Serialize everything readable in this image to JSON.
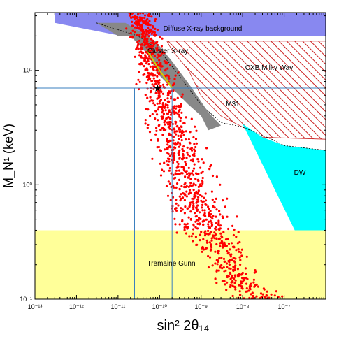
{
  "chart_data": {
    "type": "scatter",
    "title": "",
    "xlabel": "sin² 2θ₁₄",
    "ylabel": "M_N¹ (keV)",
    "xscale": "log",
    "yscale": "log",
    "xlim": [
      1e-13,
      1e-06
    ],
    "ylim": [
      0.1,
      32
    ],
    "x_tick_labels": [
      "10⁻¹³",
      "10⁻¹²",
      "10⁻¹¹",
      "10⁻¹⁰",
      "10⁻⁹",
      "10⁻⁸",
      "10⁻⁷"
    ],
    "y_tick_labels": [
      "10⁻¹",
      "10⁰",
      "10¹"
    ],
    "colors": {
      "points": "#ff0000",
      "diffuse": "#8888f0",
      "cxb": "#cc2222",
      "m31": "#888888",
      "dw": "#00ffff",
      "tremaine": "#ffff99",
      "crosshair": "#3a7fbf",
      "cluster_line": "#d4d400"
    },
    "regions": [
      {
        "label": "Diffuse X-ray background"
      },
      {
        "label": "CXB Milky Way"
      },
      {
        "label": "M31"
      },
      {
        "label": "DW"
      },
      {
        "label": "Tremaine Gunn"
      },
      {
        "label": "Cluster X-ray"
      }
    ],
    "benchmark": {
      "x": 9e-11,
      "y": 7
    },
    "crosshair": {
      "y": 7,
      "x_lines": [
        2.5e-11,
        2e-10
      ]
    },
    "boundaries": {
      "diffuse": [
        [
          3e-13,
          32
        ],
        [
          1e-06,
          32
        ],
        [
          1e-06,
          20
        ],
        [
          1.2e-11,
          20
        ],
        [
          3e-13,
          26
        ]
      ],
      "cxb": [
        [
          1.5e-10,
          18
        ],
        [
          1e-06,
          18
        ],
        [
          1e-06,
          2.5
        ],
        [
          3e-08,
          2.6
        ],
        [
          3e-09,
          4
        ],
        [
          1e-09,
          6
        ],
        [
          5e-10,
          10
        ],
        [
          2e-10,
          15
        ]
      ],
      "m31": [
        [
          3e-12,
          26
        ],
        [
          1e-11,
          20
        ],
        [
          2e-11,
          20
        ],
        [
          5e-11,
          14
        ],
        [
          1e-10,
          9
        ],
        [
          5e-10,
          5
        ],
        [
          1e-09,
          4
        ],
        [
          1.5e-09,
          3
        ],
        [
          3e-09,
          3.3
        ],
        [
          1.5e-09,
          4.3
        ],
        [
          6e-10,
          7
        ],
        [
          2e-10,
          12
        ],
        [
          8e-11,
          18
        ],
        [
          1.5e-11,
          26
        ]
      ],
      "dw": [
        [
          1e-08,
          3.4
        ],
        [
          3e-08,
          2.6
        ],
        [
          1e-07,
          2.2
        ],
        [
          1e-06,
          2.0
        ],
        [
          1e-06,
          0.4
        ],
        [
          1.8e-07,
          0.4
        ]
      ],
      "tremaine": [
        [
          1e-13,
          0.1
        ],
        [
          1e-06,
          0.1
        ],
        [
          1e-06,
          0.4
        ],
        [
          1e-13,
          0.4
        ]
      ],
      "cluster_line": [
        [
          5e-11,
          15
        ],
        [
          1e-10,
          10
        ],
        [
          2e-10,
          7
        ]
      ],
      "m31_dashed": [
        [
          3e-12,
          26
        ],
        [
          3e-11,
          20
        ],
        [
          1e-10,
          15
        ],
        [
          5e-10,
          7
        ],
        [
          1e-09,
          5
        ],
        [
          3e-09,
          3.5
        ],
        [
          1e-08,
          3.2
        ],
        [
          5e-08,
          2.5
        ],
        [
          1e-07,
          2.2
        ],
        [
          1e-06,
          2.0
        ]
      ]
    },
    "scatter": {
      "point_count": 1200,
      "band_center": [
        [
          3e-11,
          32
        ],
        [
          5e-11,
          20
        ],
        [
          1e-10,
          8
        ],
        [
          2e-10,
          3
        ],
        [
          5e-10,
          1
        ],
        [
          1e-09,
          0.5
        ],
        [
          3e-09,
          0.25
        ],
        [
          1e-08,
          0.13
        ],
        [
          3e-08,
          0.1
        ]
      ],
      "band_halfwidth_log": [
        0.3,
        0.35,
        0.45,
        0.55,
        0.6,
        0.6,
        0.55,
        0.5,
        0.5
      ]
    }
  }
}
